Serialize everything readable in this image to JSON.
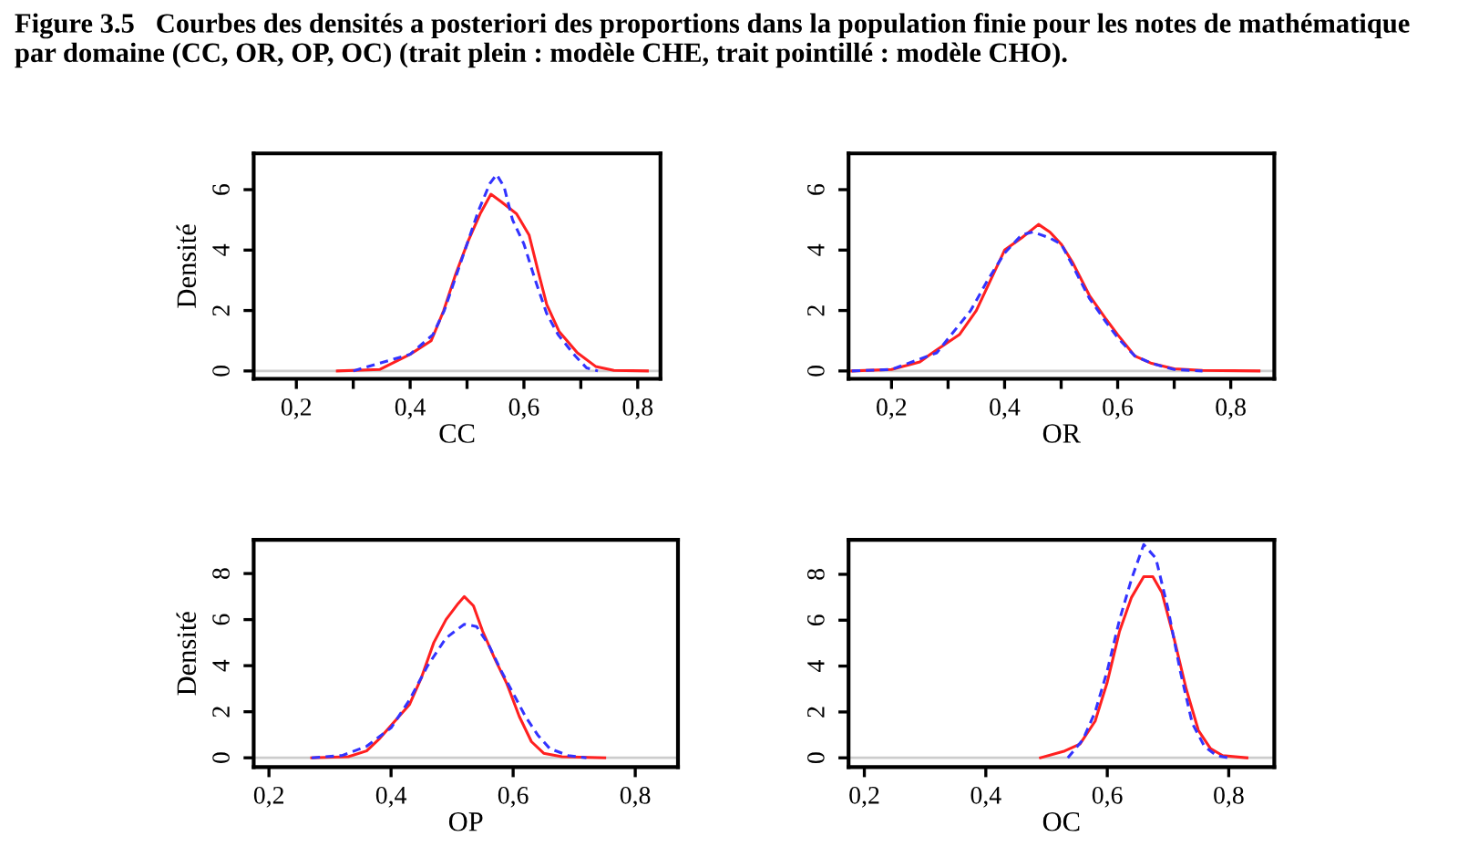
{
  "chart_data": [
    {
      "type": "line",
      "title": "Figure 3.5   Courbes des densités a posteriori des proportions dans la population finie pour les notes de mathématique par domaine (CC, OR, OP, OC) (trait plein : modèle CHE, trait pointillé : modèle CHO).",
      "xlabel": "CC",
      "ylabel": "Densité",
      "xlim": [
        0.125,
        0.84
      ],
      "ylim": [
        -0.26,
        7.2
      ],
      "xticks": [
        {
          "value": 0.2,
          "label": "0,2"
        },
        {
          "value": 0.3,
          "label": null
        },
        {
          "value": 0.4,
          "label": "0,4"
        },
        {
          "value": 0.5,
          "label": null
        },
        {
          "value": 0.6,
          "label": "0,6"
        },
        {
          "value": 0.7,
          "label": null
        },
        {
          "value": 0.8,
          "label": "0,8"
        }
      ],
      "yticks": [
        0,
        2,
        4,
        6
      ],
      "grid": false,
      "legend": false,
      "ref_lines": [
        {
          "axis": "y",
          "value": 0,
          "color": "#cccccc"
        }
      ],
      "series": [
        {
          "color": "#ff2020",
          "line_style": "solid",
          "x": [
            0.272,
            0.347,
            0.4,
            0.437,
            0.459,
            0.48,
            0.502,
            0.523,
            0.542,
            0.56,
            0.587,
            0.609,
            0.625,
            0.64,
            0.662,
            0.694,
            0.726,
            0.758,
            0.817
          ],
          "values": [
            0,
            0.05,
            0.55,
            1.0,
            2.0,
            3.2,
            4.3,
            5.2,
            5.85,
            5.6,
            5.2,
            4.5,
            3.3,
            2.2,
            1.3,
            0.6,
            0.15,
            0.02,
            0
          ]
        },
        {
          "color": "#3333ff",
          "line_style": "dashed",
          "x": [
            0.3,
            0.4,
            0.44,
            0.46,
            0.5,
            0.52,
            0.54,
            0.552,
            0.565,
            0.58,
            0.6,
            0.62,
            0.64,
            0.66,
            0.69,
            0.71,
            0.73
          ],
          "values": [
            0,
            0.55,
            1.2,
            2.0,
            4.2,
            5.3,
            6.2,
            6.5,
            6.1,
            5.0,
            4.2,
            3.0,
            1.9,
            1.2,
            0.5,
            0.1,
            0
          ]
        }
      ]
    },
    {
      "type": "line",
      "xlabel": "OR",
      "xlim": [
        0.124,
        0.877
      ],
      "ylim": [
        -0.26,
        7.2
      ],
      "xticks": [
        {
          "value": 0.2,
          "label": "0,2"
        },
        {
          "value": 0.3,
          "label": null
        },
        {
          "value": 0.4,
          "label": "0,4"
        },
        {
          "value": 0.5,
          "label": null
        },
        {
          "value": 0.6,
          "label": "0,6"
        },
        {
          "value": 0.7,
          "label": null
        },
        {
          "value": 0.8,
          "label": "0,8"
        }
      ],
      "yticks": [
        0,
        2,
        4,
        6
      ],
      "grid": false,
      "legend": false,
      "ref_lines": [
        {
          "axis": "y",
          "value": 0,
          "color": "#cccccc"
        }
      ],
      "series": [
        {
          "color": "#ff2020",
          "line_style": "solid",
          "x": [
            0.13,
            0.2,
            0.25,
            0.28,
            0.32,
            0.35,
            0.38,
            0.4,
            0.43,
            0.46,
            0.48,
            0.5,
            0.52,
            0.55,
            0.58,
            0.6,
            0.63,
            0.66,
            0.7,
            0.75,
            0.85
          ],
          "values": [
            0,
            0.05,
            0.3,
            0.7,
            1.2,
            2.0,
            3.2,
            4.0,
            4.4,
            4.85,
            4.6,
            4.2,
            3.6,
            2.5,
            1.7,
            1.2,
            0.5,
            0.25,
            0.07,
            0.02,
            0
          ]
        },
        {
          "color": "#3333ff",
          "line_style": "dashed",
          "x": [
            0.13,
            0.2,
            0.28,
            0.31,
            0.34,
            0.37,
            0.4,
            0.43,
            0.45,
            0.48,
            0.5,
            0.52,
            0.55,
            0.58,
            0.6,
            0.63,
            0.66,
            0.7,
            0.75
          ],
          "values": [
            0,
            0.05,
            0.6,
            1.3,
            2.0,
            3.0,
            3.9,
            4.5,
            4.6,
            4.4,
            4.2,
            3.5,
            2.4,
            1.6,
            1.1,
            0.5,
            0.25,
            0.05,
            0
          ]
        }
      ]
    },
    {
      "type": "line",
      "xlabel": "OP",
      "ylabel": "Densité",
      "xlim": [
        0.175,
        0.87
      ],
      "ylim": [
        -0.4,
        9.46
      ],
      "xticks": [
        {
          "value": 0.2,
          "label": "0,2"
        },
        {
          "value": 0.4,
          "label": "0,4"
        },
        {
          "value": 0.6,
          "label": "0,6"
        },
        {
          "value": 0.8,
          "label": "0,8"
        }
      ],
      "yticks": [
        0,
        2,
        4,
        6,
        8
      ],
      "grid": false,
      "legend": false,
      "ref_lines": [
        {
          "axis": "y",
          "value": 0,
          "color": "#cccccc"
        }
      ],
      "series": [
        {
          "color": "#ff2020",
          "line_style": "solid",
          "x": [
            0.27,
            0.33,
            0.36,
            0.38,
            0.4,
            0.43,
            0.45,
            0.47,
            0.49,
            0.51,
            0.52,
            0.535,
            0.55,
            0.57,
            0.59,
            0.61,
            0.63,
            0.65,
            0.68,
            0.75
          ],
          "values": [
            0,
            0.05,
            0.3,
            0.8,
            1.4,
            2.3,
            3.5,
            5.0,
            6.0,
            6.7,
            7.0,
            6.6,
            5.5,
            4.3,
            3.2,
            1.8,
            0.7,
            0.2,
            0.05,
            0
          ]
        },
        {
          "color": "#3333ff",
          "line_style": "dashed",
          "x": [
            0.27,
            0.32,
            0.36,
            0.4,
            0.43,
            0.46,
            0.49,
            0.52,
            0.54,
            0.56,
            0.58,
            0.6,
            0.62,
            0.64,
            0.66,
            0.69,
            0.72
          ],
          "values": [
            0,
            0.1,
            0.5,
            1.3,
            2.5,
            4.0,
            5.2,
            5.8,
            5.7,
            4.9,
            3.8,
            2.8,
            1.8,
            1.0,
            0.4,
            0.1,
            0
          ]
        }
      ]
    },
    {
      "type": "line",
      "xlabel": "OC",
      "xlim": [
        0.174,
        0.875
      ],
      "ylim": [
        -0.4,
        9.5
      ],
      "xticks": [
        {
          "value": 0.2,
          "label": "0,2"
        },
        {
          "value": 0.4,
          "label": "0,4"
        },
        {
          "value": 0.6,
          "label": "0,6"
        },
        {
          "value": 0.8,
          "label": "0,8"
        }
      ],
      "yticks": [
        0,
        2,
        4,
        6,
        8
      ],
      "grid": false,
      "legend": false,
      "ref_lines": [
        {
          "axis": "y",
          "value": 0,
          "color": "#cccccc"
        }
      ],
      "series": [
        {
          "color": "#ff2020",
          "line_style": "solid",
          "x": [
            0.49,
            0.53,
            0.555,
            0.58,
            0.6,
            0.62,
            0.64,
            0.66,
            0.675,
            0.69,
            0.71,
            0.73,
            0.75,
            0.77,
            0.79,
            0.83
          ],
          "values": [
            0,
            0.3,
            0.6,
            1.6,
            3.3,
            5.5,
            7.0,
            7.9,
            7.9,
            7.2,
            5.2,
            3.0,
            1.2,
            0.4,
            0.1,
            0
          ]
        },
        {
          "color": "#3333ff",
          "line_style": "dashed",
          "x": [
            0.535,
            0.56,
            0.58,
            0.6,
            0.62,
            0.64,
            0.66,
            0.68,
            0.7,
            0.72,
            0.74,
            0.76,
            0.78,
            0.8
          ],
          "values": [
            0,
            0.8,
            2.0,
            3.8,
            6.0,
            7.8,
            9.3,
            8.7,
            6.5,
            3.8,
            1.5,
            0.5,
            0.1,
            0
          ]
        }
      ]
    }
  ]
}
